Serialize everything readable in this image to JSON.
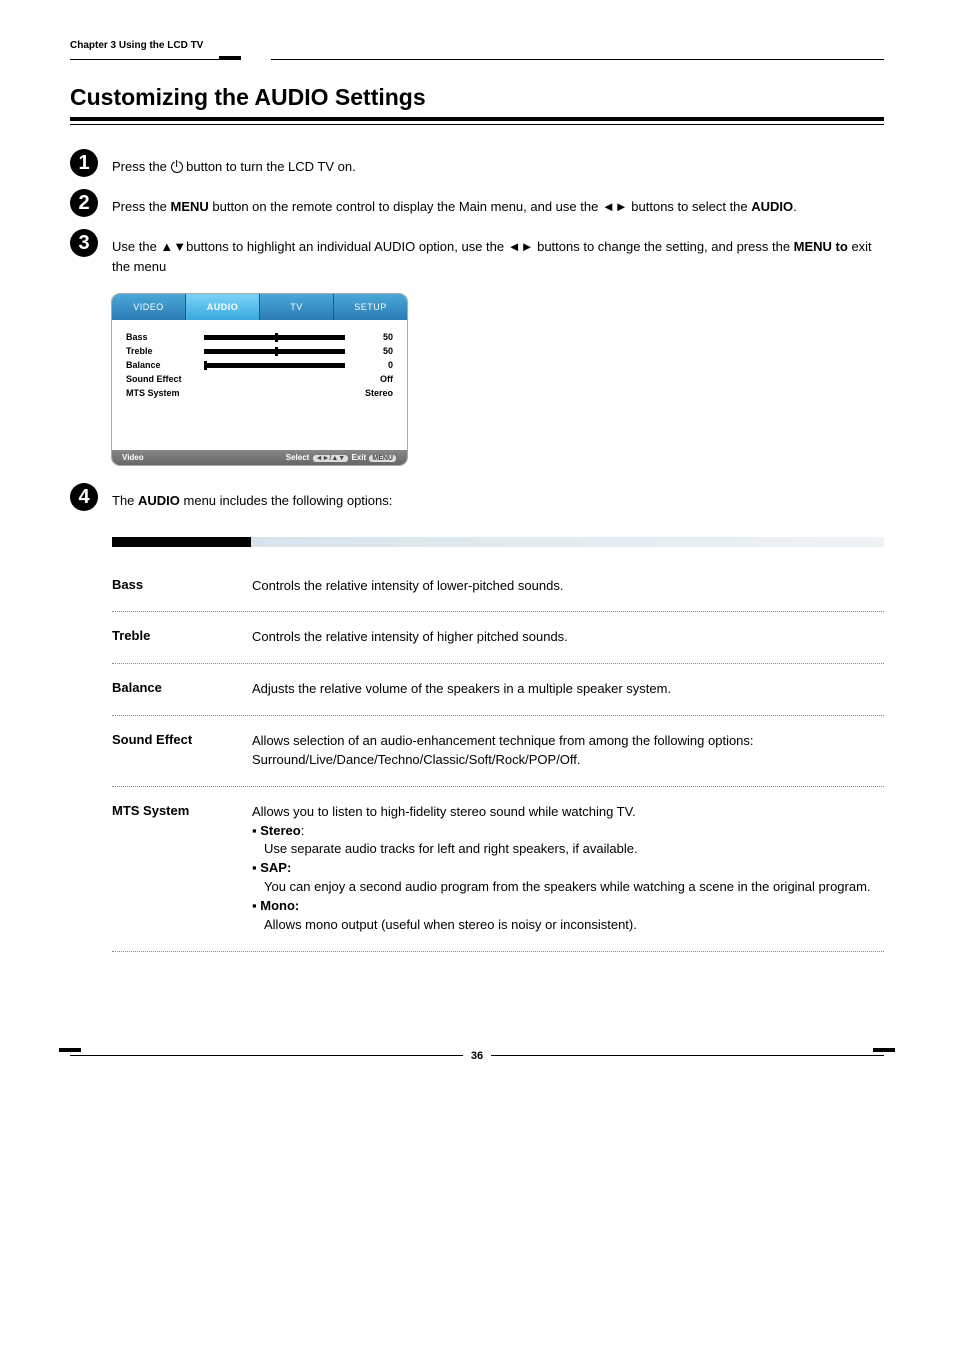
{
  "chapter": "Chapter 3 Using the LCD TV",
  "page_title": "Customizing the AUDIO Settings",
  "steps": {
    "s1": {
      "pre": "Press the ",
      "post": " button to turn the LCD TV on."
    },
    "s2": {
      "a": "Press the ",
      "b": "MENU",
      "c": " button on the remote control to display the Main menu, and use the ◄► buttons to select the ",
      "d": "AUDIO",
      "e": "."
    },
    "s3": {
      "a": "Use the ▲▼buttons to highlight an individual AUDIO option, use the ◄► buttons to change the setting, and press the ",
      "b": "MENU to",
      "c": " exit the menu"
    }
  },
  "menu": {
    "tabs": {
      "video": "VIDEO",
      "audio": "AUDIO",
      "tv": "TV",
      "setup": "SETUP"
    },
    "rows": {
      "bass": {
        "label": "Bass",
        "val": "50"
      },
      "treble": {
        "label": "Treble",
        "val": "50"
      },
      "balance": {
        "label": "Balance",
        "val": "0"
      },
      "sound": {
        "label": "Sound Effect",
        "val": "Off"
      },
      "mts": {
        "label": "MTS System",
        "val": "Stereo"
      }
    },
    "footer_left": "Video",
    "footer_select": "Select",
    "footer_arrows": "◄►/▲▼",
    "footer_exit": "Exit",
    "footer_menu": "MENU"
  },
  "options_intro": {
    "a": "The ",
    "b": "AUDIO",
    "c": " menu includes the following options:"
  },
  "options": {
    "bass": {
      "name": "Bass",
      "desc": "Controls the relative intensity of lower-pitched sounds."
    },
    "treble": {
      "name": "Treble",
      "desc": "Controls the relative intensity of higher pitched sounds."
    },
    "balance": {
      "name": "Balance",
      "desc": "Adjusts the relative volume of the speakers in a multiple speaker system."
    },
    "sound": {
      "name": "Sound Effect",
      "desc": "Allows selection of an audio-enhancement technique from among the following options: Surround/Live/Dance/Techno/Classic/Soft/Rock/POP/Off."
    },
    "mts": {
      "name": "MTS System",
      "intro": "Allows you to listen to high-fidelity stereo sound while watching TV.",
      "stereo_label": "Stereo",
      "stereo_desc": "Use separate audio tracks for left and right speakers, if available.",
      "sap_label": "SAP:",
      "sap_desc1": "You can enjoy a second audio program from the speakers while watching a scene in the original program.",
      "mono_label": "Mono:",
      "mono_desc": "Allows mono output (useful when stereo is noisy or inconsistent)."
    }
  },
  "page_number": "36"
}
